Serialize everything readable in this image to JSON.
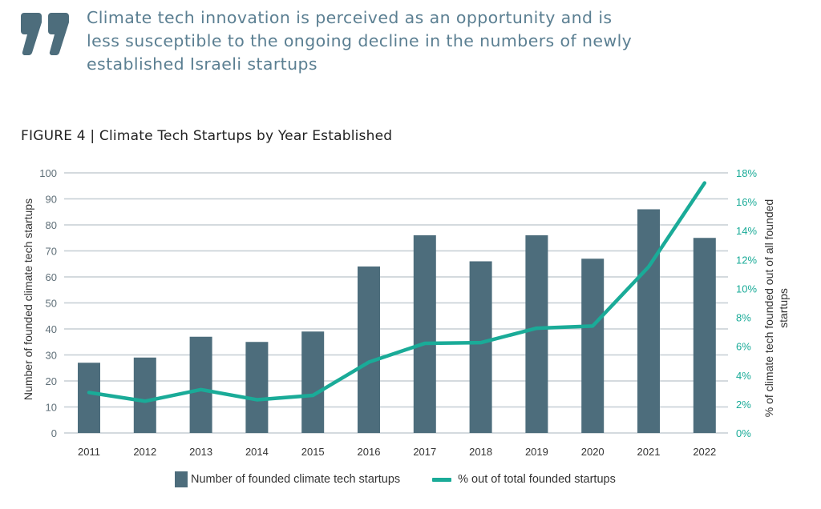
{
  "quote": {
    "icon": "quote-mark-icon",
    "lines": [
      "Climate tech innovation is perceived as an opportunity and is",
      "less susceptible to the ongoing decline in the numbers of newly",
      "established Israeli startups"
    ]
  },
  "figure_title": "FIGURE 4 | Climate Tech Startups by Year Established",
  "colors": {
    "bar": "#4d6d7c",
    "line": "#1aab98",
    "grid": "#c5ced4",
    "quote": "#5b7f92"
  },
  "chart_data": {
    "type": "bar+line",
    "title": "FIGURE 4 | Climate Tech Startups by Year Established",
    "categories": [
      "2011",
      "2012",
      "2013",
      "2014",
      "2015",
      "2016",
      "2017",
      "2018",
      "2019",
      "2020",
      "2021",
      "2022"
    ],
    "series": [
      {
        "name": "Number of founded climate tech startups",
        "type": "bar",
        "axis": "left",
        "values": [
          27,
          29,
          37,
          35,
          39,
          64,
          76,
          66,
          76,
          67,
          86,
          75
        ]
      },
      {
        "name": "% out of total founded startups",
        "type": "line",
        "axis": "right",
        "values": [
          2.8,
          2.2,
          3.0,
          2.3,
          2.6,
          4.9,
          6.2,
          6.25,
          7.25,
          7.4,
          11.5,
          17.3
        ]
      }
    ],
    "ylabel": "Number of founded climate tech startups",
    "y2label_lines": [
      "% of climate tech founded out of all founded",
      "startups"
    ],
    "ylim": [
      0,
      100
    ],
    "yticks": [
      "0",
      "10",
      "20",
      "30",
      "40",
      "50",
      "60",
      "70",
      "80",
      "90",
      "100"
    ],
    "y2lim": [
      0,
      18
    ],
    "y2ticks": [
      "0%",
      "2%",
      "4%",
      "6%",
      "8%",
      "10%",
      "12%",
      "14%",
      "16%",
      "18%"
    ],
    "grid": true,
    "legend_position": "bottom"
  },
  "legend": {
    "bar_label": "Number of founded climate tech startups",
    "line_label": "% out of total founded startups"
  }
}
